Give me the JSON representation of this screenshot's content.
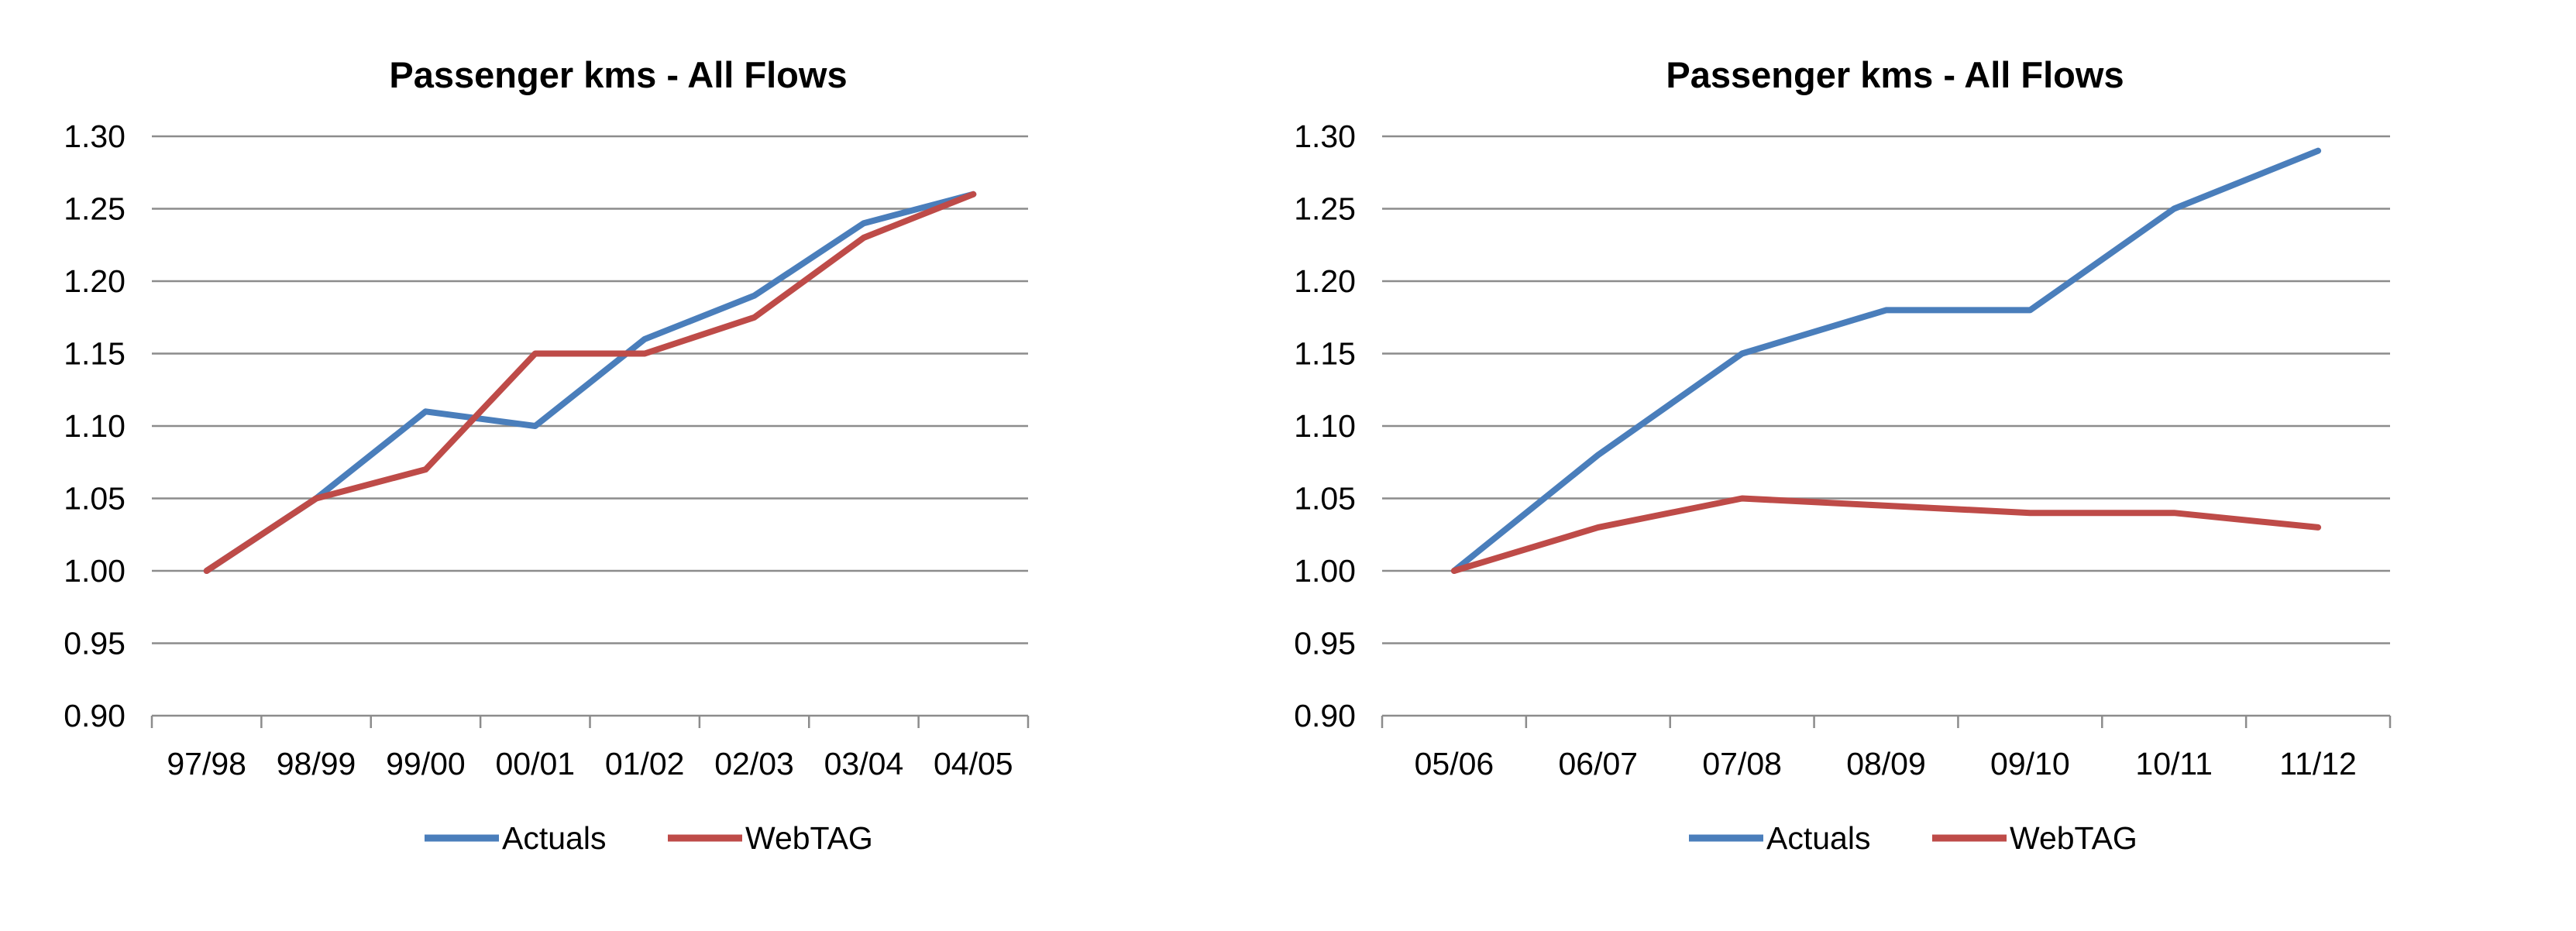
{
  "chart_data": [
    {
      "type": "line",
      "title": "Passenger kms - All Flows",
      "xlabel": "",
      "ylabel": "",
      "categories": [
        "97/98",
        "98/99",
        "99/00",
        "00/01",
        "01/02",
        "02/03",
        "03/04",
        "04/05"
      ],
      "y_ticks": [
        "0.90",
        "0.95",
        "1.00",
        "1.05",
        "1.10",
        "1.15",
        "1.20",
        "1.25",
        "1.30"
      ],
      "ylim": [
        0.9,
        1.3
      ],
      "grid": true,
      "legend": "bottom",
      "series": [
        {
          "name": "Actuals",
          "color": "#4a7ebb",
          "values": [
            1.0,
            1.05,
            1.11,
            1.1,
            1.16,
            1.19,
            1.24,
            1.26
          ]
        },
        {
          "name": "WebTAG",
          "color": "#be4b48",
          "values": [
            1.0,
            1.05,
            1.07,
            1.15,
            1.15,
            1.175,
            1.23,
            1.26
          ]
        }
      ]
    },
    {
      "type": "line",
      "title": "Passenger kms - All Flows",
      "xlabel": "",
      "ylabel": "",
      "categories": [
        "05/06",
        "06/07",
        "07/08",
        "08/09",
        "09/10",
        "10/11",
        "11/12"
      ],
      "y_ticks": [
        "0.90",
        "0.95",
        "1.00",
        "1.05",
        "1.10",
        "1.15",
        "1.20",
        "1.25",
        "1.30"
      ],
      "ylim": [
        0.9,
        1.3
      ],
      "grid": true,
      "legend": "bottom",
      "series": [
        {
          "name": "Actuals",
          "color": "#4a7ebb",
          "values": [
            1.0,
            1.08,
            1.15,
            1.18,
            1.18,
            1.25,
            1.29
          ]
        },
        {
          "name": "WebTAG",
          "color": "#be4b48",
          "values": [
            1.0,
            1.03,
            1.05,
            1.045,
            1.04,
            1.04,
            1.03
          ]
        }
      ]
    }
  ]
}
